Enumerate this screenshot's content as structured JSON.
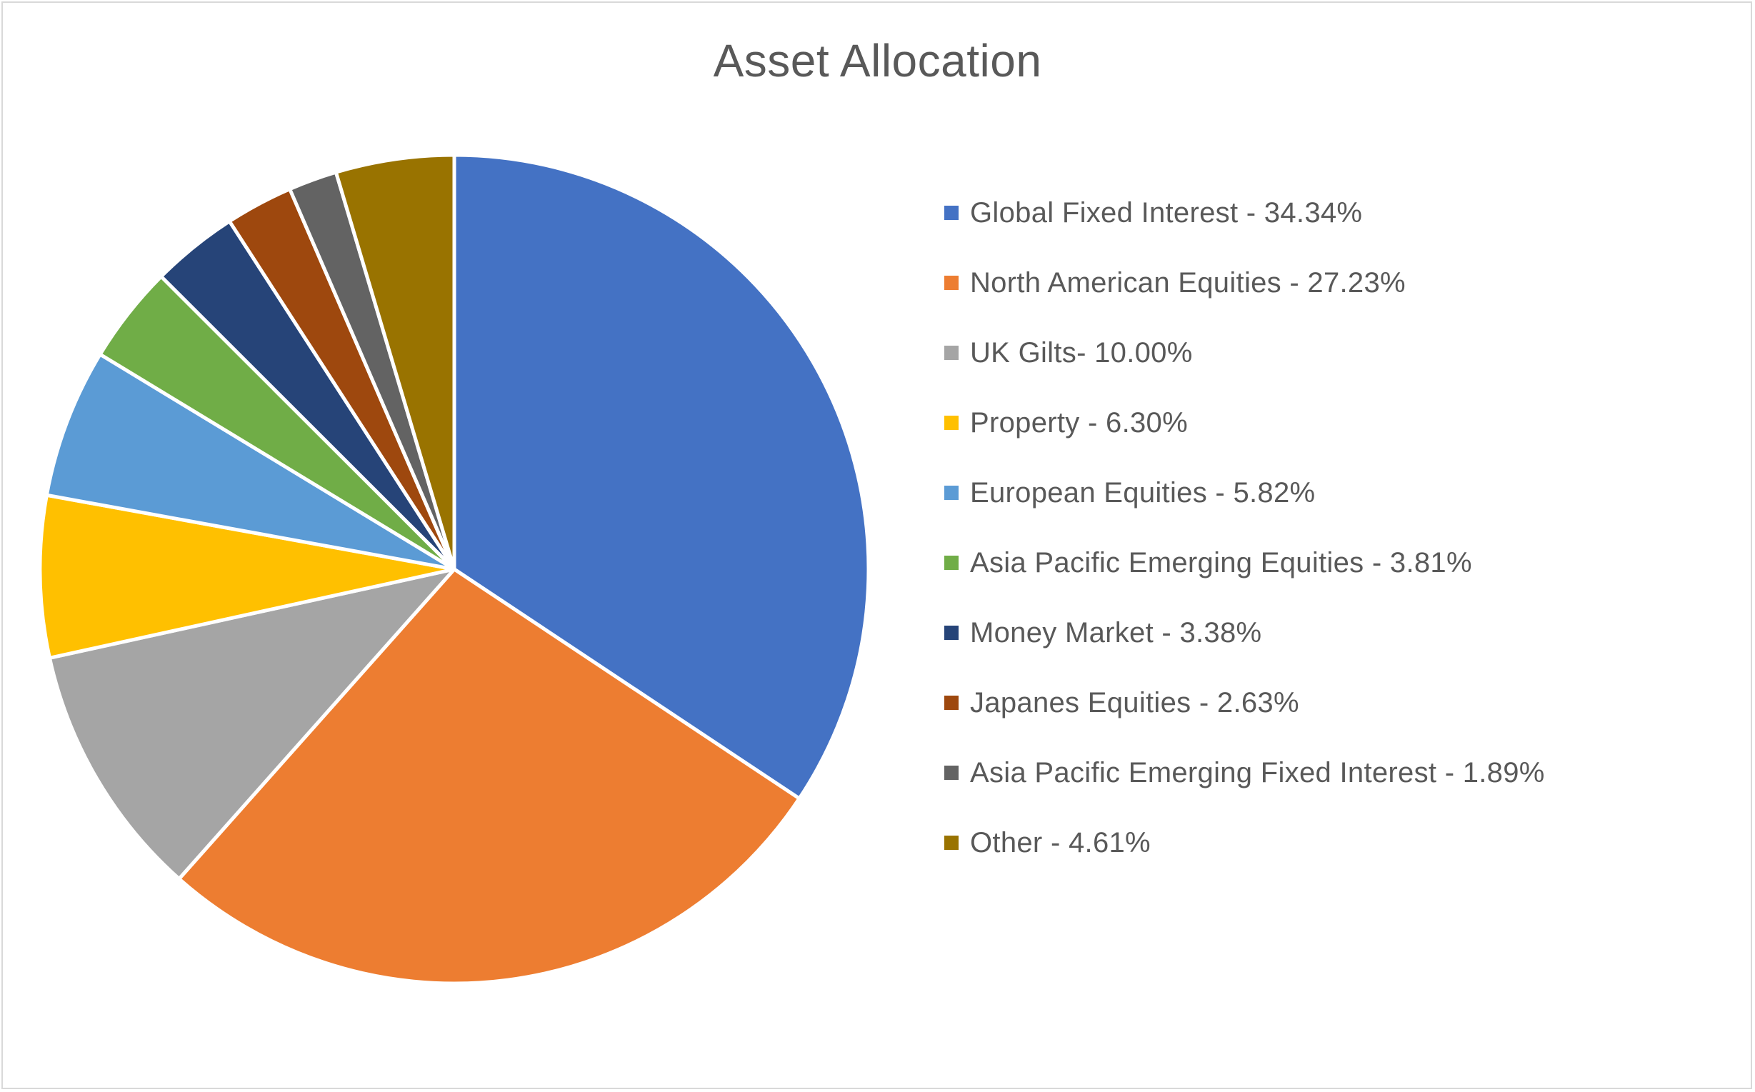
{
  "chart_data": {
    "type": "pie",
    "title": "Asset Allocation",
    "legend_position": "right",
    "start_angle_deg": 0,
    "direction": "clockwise",
    "slices": [
      {
        "label": "Global Fixed Interest - 34.34%",
        "value": 34.34,
        "color": "#4472C4"
      },
      {
        "label": "North American Equities - 27.23%",
        "value": 27.23,
        "color": "#ED7D31"
      },
      {
        "label": "UK Gilts- 10.00%",
        "value": 10.0,
        "color": "#A5A5A5"
      },
      {
        "label": "Property - 6.30%",
        "value": 6.3,
        "color": "#FFC000"
      },
      {
        "label": "European Equities - 5.82%",
        "value": 5.82,
        "color": "#5B9BD5"
      },
      {
        "label": "Asia Pacific Emerging Equities - 3.81%",
        "value": 3.81,
        "color": "#70AD47"
      },
      {
        "label": "Money Market - 3.38%",
        "value": 3.38,
        "color": "#264478"
      },
      {
        "label": "Japanes Equities - 2.63%",
        "value": 2.63,
        "color": "#9E480E"
      },
      {
        "label": "Asia Pacific Emerging Fixed Interest - 1.89%",
        "value": 1.89,
        "color": "#636363"
      },
      {
        "label": "Other - 4.61%",
        "value": 4.61,
        "color": "#997300"
      }
    ]
  }
}
